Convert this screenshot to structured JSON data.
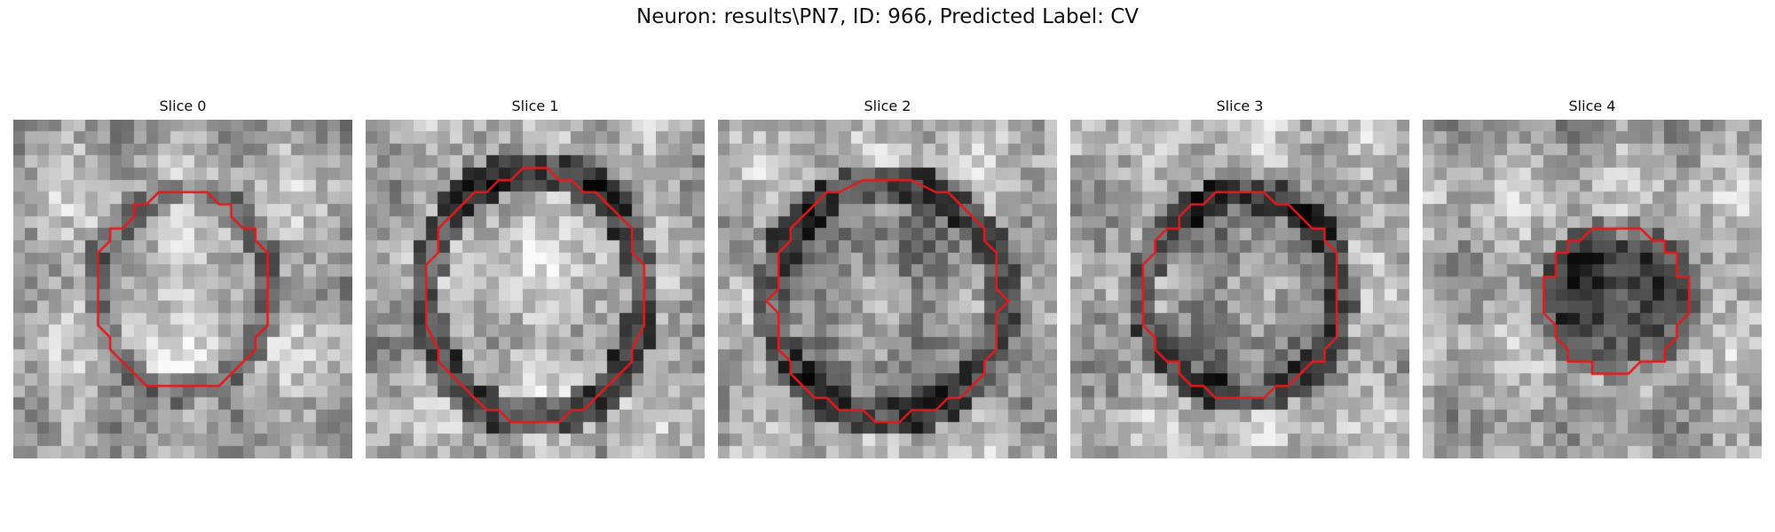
{
  "figure": {
    "title": "Neuron: results\\PN7, ID: 966, Predicted Label: CV",
    "contour_color": "#e41a1c",
    "colormap": "grayscale",
    "panels": [
      {
        "label": "Slice 0",
        "seed": 11,
        "contour_center": [
          0.5,
          0.51
        ],
        "contour_radius": [
          0.26,
          0.29
        ],
        "interior": "light",
        "ring": "soft"
      },
      {
        "label": "Slice 1",
        "seed": 23,
        "contour_center": [
          0.5,
          0.52
        ],
        "contour_radius": [
          0.32,
          0.37
        ],
        "interior": "light",
        "ring": "dark"
      },
      {
        "label": "Slice 2",
        "seed": 37,
        "contour_center": [
          0.5,
          0.53
        ],
        "contour_radius": [
          0.34,
          0.35
        ],
        "interior": "mid",
        "ring": "dark"
      },
      {
        "label": "Slice 3",
        "seed": 41,
        "contour_center": [
          0.51,
          0.52
        ],
        "contour_radius": [
          0.29,
          0.3
        ],
        "interior": "mid",
        "ring": "dark"
      },
      {
        "label": "Slice 4",
        "seed": 53,
        "contour_center": [
          0.57,
          0.53
        ],
        "contour_radius": [
          0.21,
          0.21
        ],
        "interior": "dark",
        "ring": "soft"
      }
    ]
  }
}
